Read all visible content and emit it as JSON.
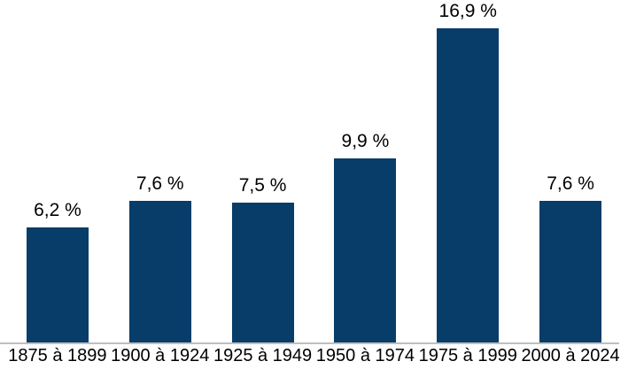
{
  "chart_data": {
    "type": "bar",
    "title": "",
    "xlabel": "",
    "ylabel": "",
    "categories": [
      "1875 à 1899",
      "1900 à 1924",
      "1925 à 1949",
      "1950 à 1974",
      "1975 à 1999",
      "2000 à 2024"
    ],
    "values": [
      6.2,
      7.6,
      7.5,
      9.9,
      16.9,
      7.6
    ],
    "value_labels": [
      "6,2 %",
      "7,6 %",
      "7,5 %",
      "9,9 %",
      "16,9 %",
      "7,6 %"
    ],
    "ylim": [
      0,
      18.4
    ],
    "grid": false,
    "legend": false,
    "y_axis_visible": false,
    "colors": {
      "bar": "#083C69",
      "axis_line": "#BFBFBF",
      "text": "#000000",
      "background": "#FFFFFF"
    }
  }
}
